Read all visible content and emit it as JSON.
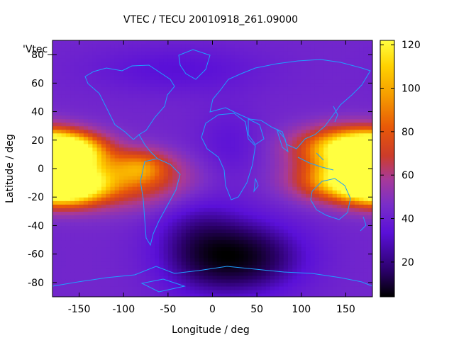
{
  "chart_data": {
    "type": "heatmap",
    "title": "VTEC / TECU 20010918_261.09000",
    "xlabel": "Longitude / deg",
    "ylabel": "Latitude / deg",
    "legend_key": "'Vtec_",
    "xlim": [
      -180,
      180
    ],
    "ylim": [
      -90,
      90
    ],
    "x_ticks": [
      -150,
      -100,
      -50,
      0,
      50,
      100,
      150
    ],
    "y_ticks": [
      -80,
      -60,
      -40,
      -20,
      0,
      20,
      40,
      60,
      80
    ],
    "colorbar": {
      "range": [
        4,
        122
      ],
      "ticks": [
        20,
        40,
        60,
        80,
        100,
        120
      ]
    },
    "grid": false,
    "colormap": [
      "#000000",
      "#2a0068",
      "#5a10d8",
      "#7a2ec8",
      "#a83a98",
      "#cc3c2a",
      "#e85808",
      "#f59a00",
      "#ffd200",
      "#ffff40"
    ],
    "coastline_color": "#1ea0ff",
    "z_description_lon": [
      -180,
      -170,
      -160,
      -150,
      -140,
      -130,
      -120,
      -110,
      -100,
      -90,
      -80,
      -70,
      -60,
      -50,
      -40,
      -30,
      -20,
      -10,
      0,
      10,
      20,
      30,
      40,
      50,
      60,
      70,
      80,
      90,
      100,
      110,
      120,
      130,
      140,
      150,
      160,
      170,
      180
    ],
    "z_description_lat": [
      -90,
      -80,
      -70,
      -60,
      -50,
      -40,
      -30,
      -20,
      -10,
      0,
      10,
      20,
      30,
      40,
      50,
      60,
      70,
      80,
      90
    ],
    "features": [
      {
        "lon": -165,
        "lat": 12,
        "slon": 30,
        "slat": 9,
        "amp": 95
      },
      {
        "lon": -165,
        "lat": -12,
        "slon": 30,
        "slat": 9,
        "amp": 90
      },
      {
        "lon": -100,
        "lat": -8,
        "slon": 60,
        "slat": 13,
        "amp": 40
      },
      {
        "lon": -80,
        "lat": 2,
        "slon": 22,
        "slat": 8,
        "amp": 30
      },
      {
        "lon": 150,
        "lat": 15,
        "slon": 38,
        "slat": 10,
        "amp": 75
      },
      {
        "lon": 150,
        "lat": -8,
        "slon": 38,
        "slat": 10,
        "amp": 72
      },
      {
        "lon": 175,
        "lat": 2,
        "slon": 20,
        "slat": 14,
        "amp": 20
      },
      {
        "lon": 30,
        "lat": -62,
        "slon": 50,
        "slat": 18,
        "amp": -32
      },
      {
        "lon": -20,
        "lat": -40,
        "slon": 35,
        "slat": 30,
        "amp": -12
      },
      {
        "lon": 20,
        "lat": 15,
        "slon": 25,
        "slat": 20,
        "amp": -8
      },
      {
        "lon": -40,
        "lat": 70,
        "slon": 70,
        "slat": 12,
        "amp": -10
      }
    ],
    "base_value": 40
  }
}
